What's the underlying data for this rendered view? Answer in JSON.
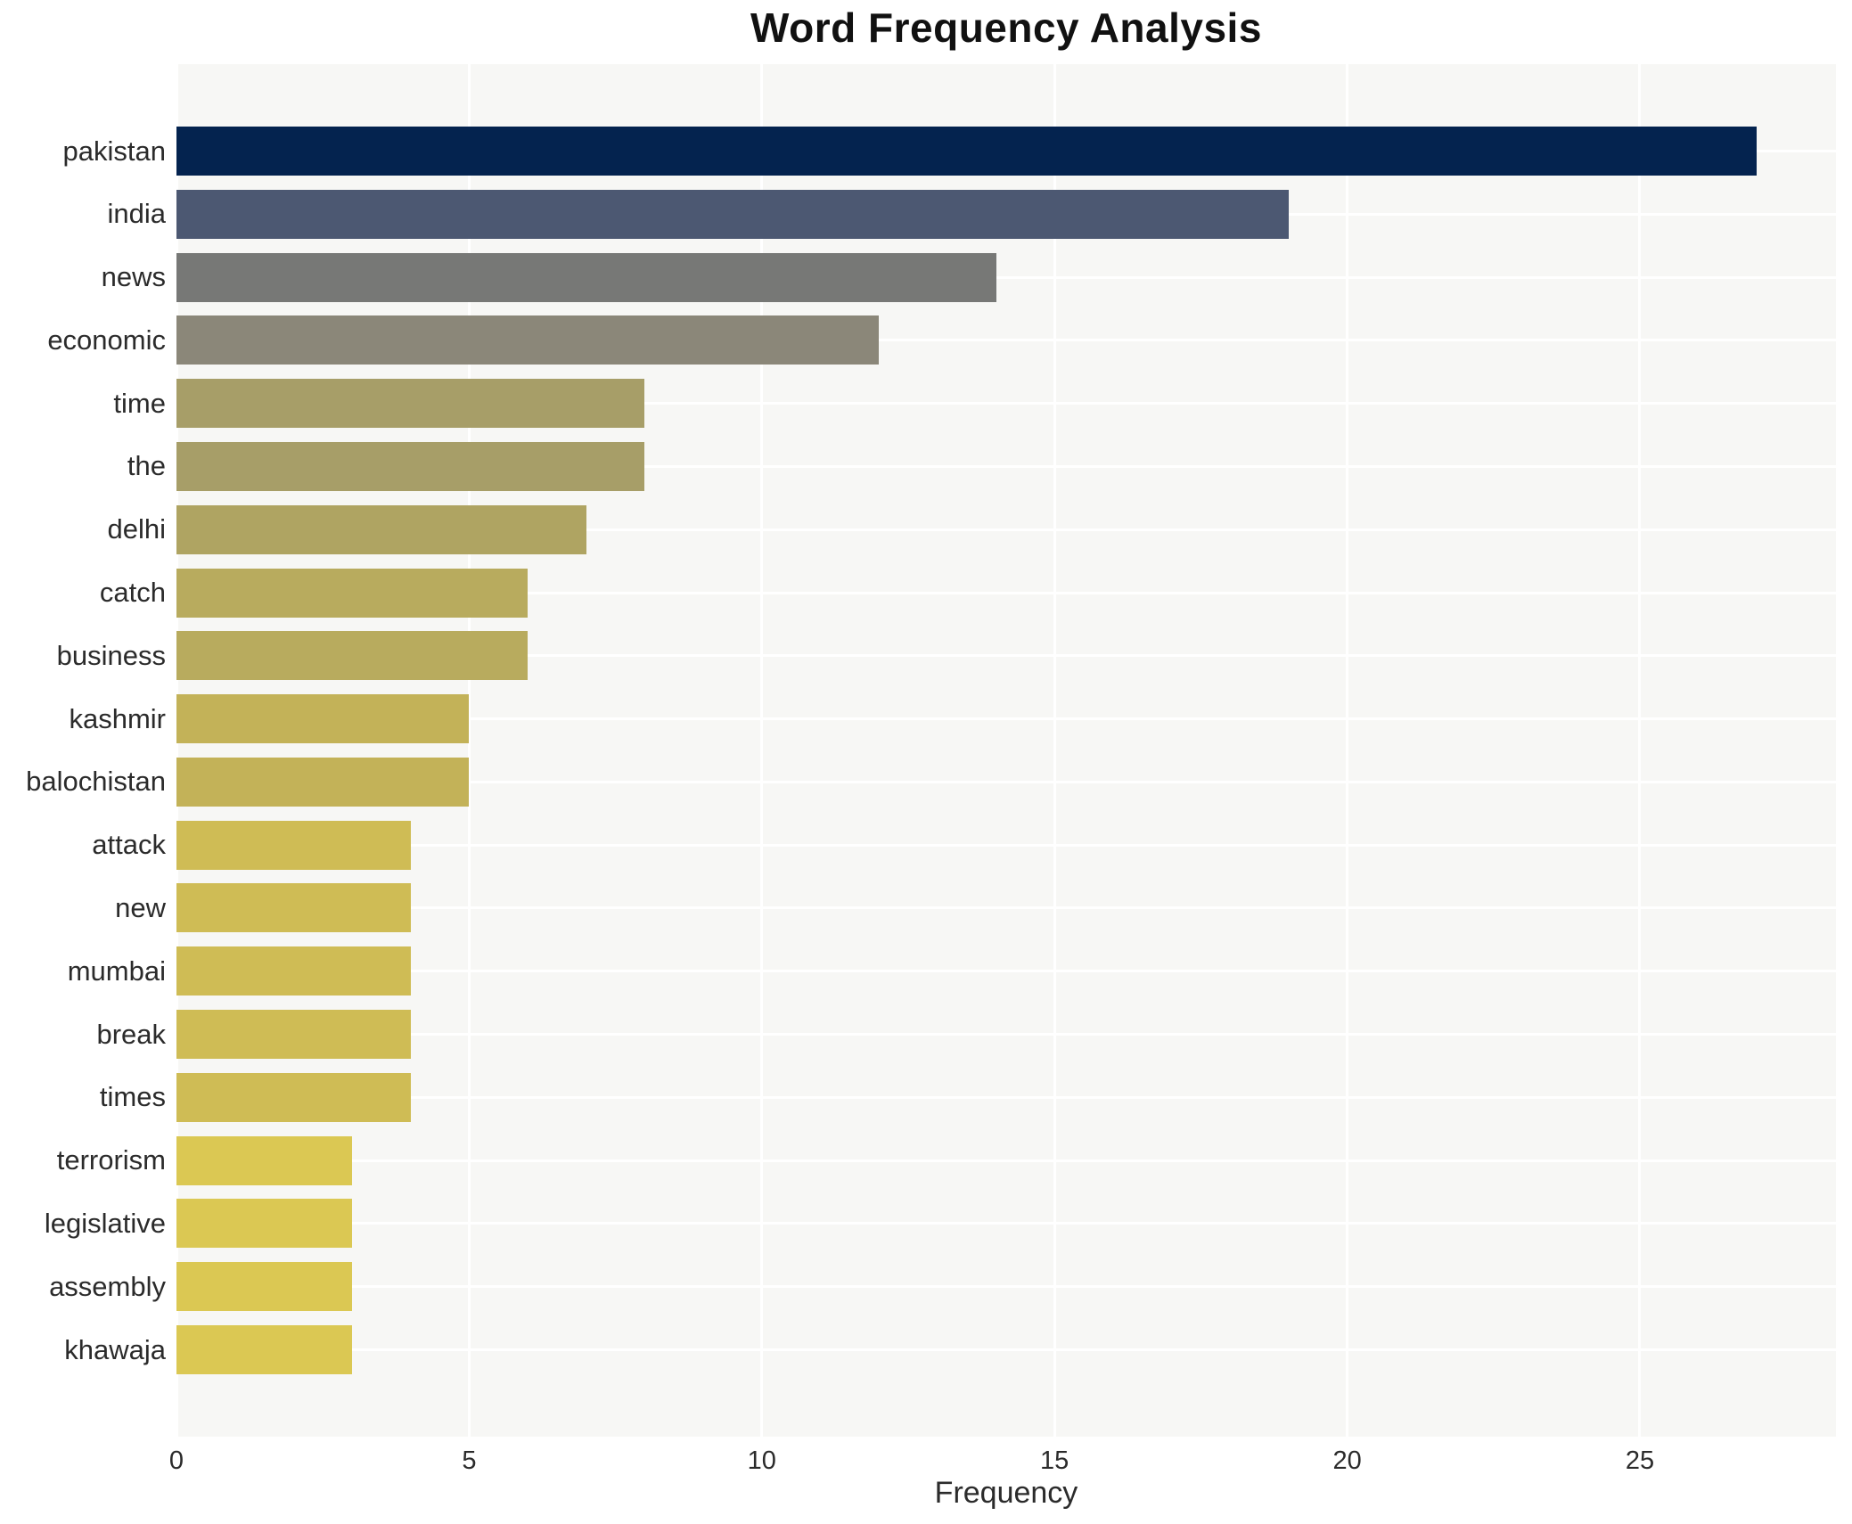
{
  "title": "Word Frequency Analysis",
  "chart_data": {
    "type": "bar",
    "orientation": "horizontal",
    "title": "Word Frequency Analysis",
    "xlabel": "Frequency",
    "ylabel": "",
    "xlim": [
      0,
      28.35
    ],
    "x_ticks": [
      0,
      5,
      10,
      15,
      20,
      25
    ],
    "grid": true,
    "legend": false,
    "plot_background": "#f7f7f5",
    "gridline_color": "#ffffff",
    "categories": [
      "pakistan",
      "india",
      "news",
      "economic",
      "time",
      "the",
      "delhi",
      "catch",
      "business",
      "kashmir",
      "balochistan",
      "attack",
      "new",
      "mumbai",
      "break",
      "times",
      "terrorism",
      "legislative",
      "assembly",
      "khawaja"
    ],
    "values": [
      27,
      19,
      14,
      12,
      8,
      8,
      7,
      6,
      6,
      5,
      5,
      4,
      4,
      4,
      4,
      4,
      3,
      3,
      3,
      3
    ],
    "bar_colors": [
      "#04234f",
      "#4c5872",
      "#777876",
      "#8b8779",
      "#a79e68",
      "#a79e68",
      "#afa462",
      "#b8ab5e",
      "#b8ab5e",
      "#c3b258",
      "#c3b258",
      "#cfbc55",
      "#cfbc55",
      "#cfbc55",
      "#cfbc55",
      "#cfbc55",
      "#dbc853",
      "#dbc853",
      "#dbc853",
      "#dbc853"
    ]
  }
}
